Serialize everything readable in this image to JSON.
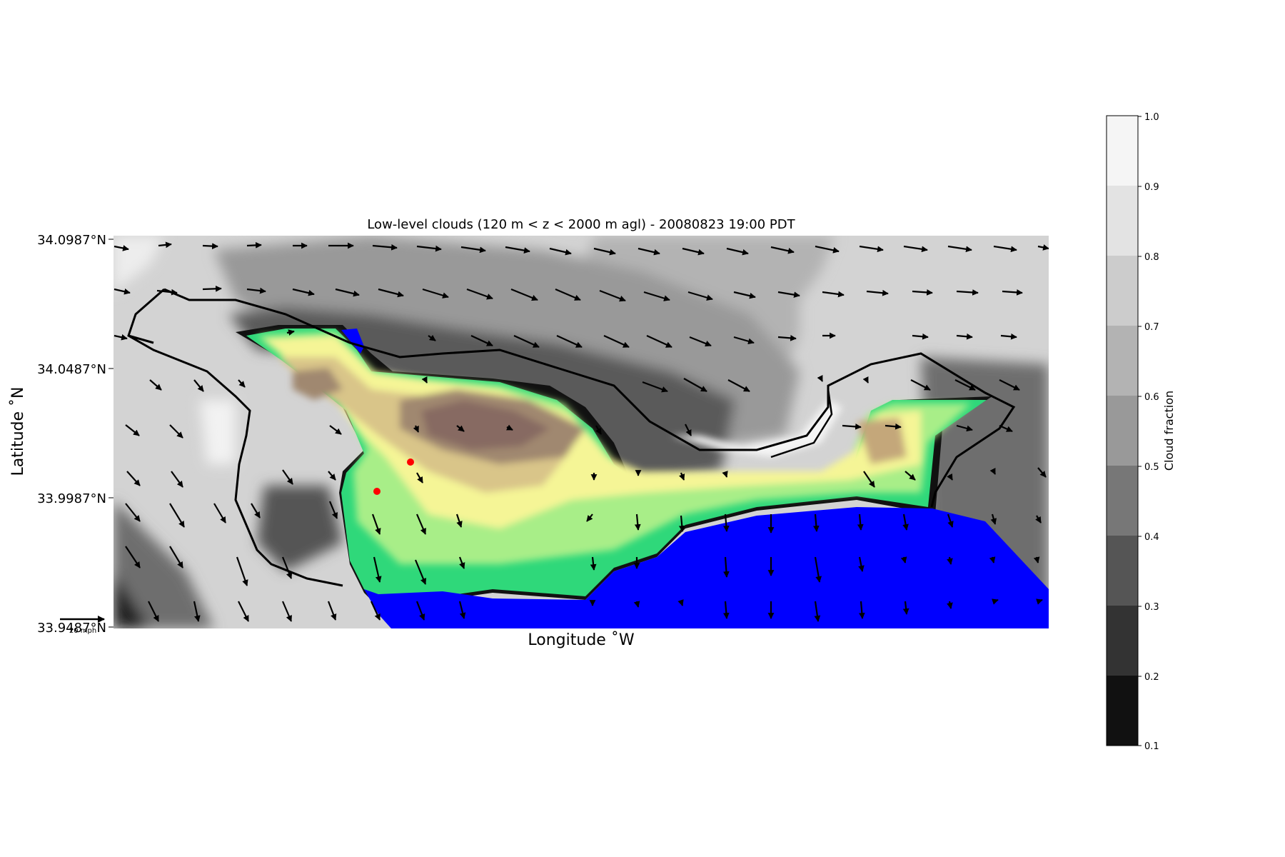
{
  "chart_data": {
    "type": "heatmap",
    "title": "Low-level clouds (120 m < z < 2000 m agl) - 20080823 19:00 PDT",
    "xlabel": "Longitude $^\\circ$W",
    "xlabel_display": "Longitude ˚W",
    "ylabel": "Latitude $^\\circ$N",
    "ylabel_display": "Latitude ˚N",
    "yticks": [
      "34.0987°N",
      "34.0487°N",
      "33.9987°N",
      "33.9487°N"
    ],
    "ylim": [
      33.9487,
      34.0987
    ],
    "colorbar": {
      "label": "Cloud fraction",
      "ticks": [
        "1.0",
        "0.9",
        "0.8",
        "0.7",
        "0.6",
        "0.5",
        "0.4",
        "0.3",
        "0.2",
        "0.1"
      ],
      "range": [
        0.1,
        1.0
      ],
      "colors": [
        "#111111",
        "#333333",
        "#555555",
        "#777777",
        "#999999",
        "#b3b3b3",
        "#cccccc",
        "#e3e3e3",
        "#f5f5f5"
      ]
    },
    "quiver_key": {
      "label": "20 mph"
    },
    "markers": {
      "color": "#ff0000",
      "count": 2
    },
    "colors": {
      "ocean": "#0000ff",
      "terrain_low": "#2fd87a",
      "terrain_mid": "#f5f596",
      "terrain_high": "#8a6e64",
      "coastline": "#000000"
    }
  }
}
